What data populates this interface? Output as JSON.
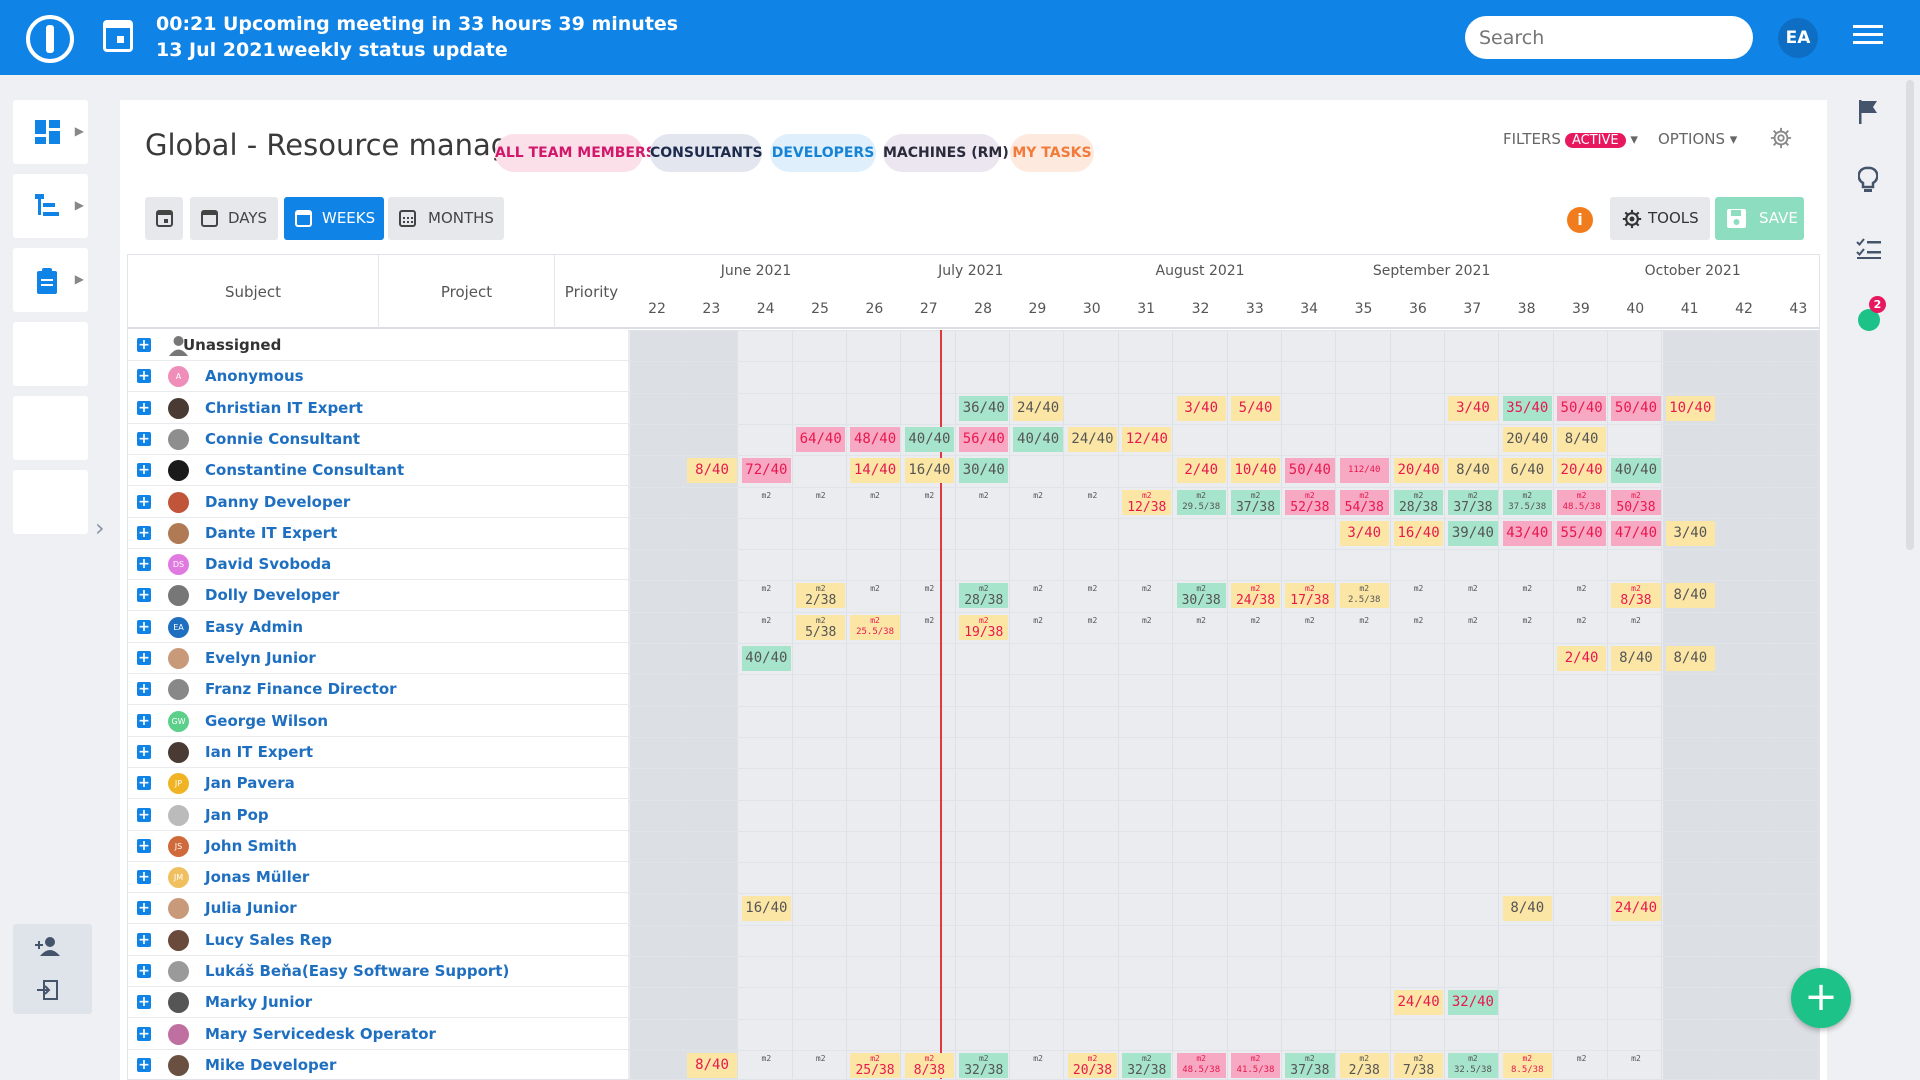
{
  "topbar": {
    "time": "00:21",
    "meeting": "Upcoming meeting in 33 hours 39 minutes",
    "date": "13 Jul 2021",
    "event": "weekly status update",
    "search_placeholder": "Search",
    "avatar": "EA"
  },
  "page": {
    "title": "Global - Resource management"
  },
  "views": [
    {
      "label": "ALL TEAM MEMBERS",
      "bg": "#fbe0ea",
      "fg": "#d1186a"
    },
    {
      "label": "CONSULTANTS",
      "bg": "#e3e6ee",
      "fg": "#1c2a4c"
    },
    {
      "label": "DEVELOPERS",
      "bg": "#dff0fc",
      "fg": "#1783d4"
    },
    {
      "label": "MACHINES (RM)",
      "bg": "#ebe6ef",
      "fg": "#2a2a3a"
    },
    {
      "label": "MY TASKS",
      "bg": "#fde9de",
      "fg": "#f27a3a"
    }
  ],
  "toolbar": {
    "filters": "FILTERS",
    "active": "ACTIVE",
    "options": "OPTIONS",
    "days": "DAYS",
    "weeks": "WEEKS",
    "months": "MONTHS",
    "tools": "TOOLS",
    "save": "SAVE",
    "info": "i"
  },
  "columns": {
    "subject": "Subject",
    "project": "Project",
    "priority": "Priority"
  },
  "months": [
    {
      "label": "June 2021",
      "week": 24
    },
    {
      "label": "July 2021",
      "week": 28
    },
    {
      "label": "August 2021",
      "week": 32
    },
    {
      "label": "September 2021",
      "week": 36
    },
    {
      "label": "October 2021",
      "week": 41
    }
  ],
  "weeks": [
    "22",
    "23",
    "24",
    "25",
    "26",
    "27",
    "28",
    "29",
    "30",
    "31",
    "32",
    "33",
    "34",
    "35",
    "36",
    "37",
    "38",
    "39",
    "40",
    "41",
    "42",
    "43"
  ],
  "current_week": 28,
  "colors": {
    "pink": "#f7a8c2",
    "green": "#a6e4cc",
    "yellow": "#fbe6a6",
    "red_text": "#e8184f",
    "dark_text": "#555555",
    "accent": "#0f83e6",
    "save": "#8dddc0",
    "fab": "#1cc287",
    "badge": "#e8185e"
  },
  "people": [
    {
      "name": "Unassigned",
      "type": "group",
      "cells": []
    },
    {
      "name": "Anonymous",
      "avatar": "A",
      "color": "#ef8fb9",
      "cells": []
    },
    {
      "name": "Christian IT Expert",
      "avatar": "photo",
      "color": "#4a3a34",
      "cells": [
        {
          "w": 28,
          "v": "36/40",
          "bg": "green",
          "red": false
        },
        {
          "w": 29,
          "v": "24/40",
          "bg": "yellow",
          "red": false
        },
        {
          "w": 32,
          "v": "3/40",
          "bg": "yellow",
          "red": true
        },
        {
          "w": 33,
          "v": "5/40",
          "bg": "yellow",
          "red": true
        },
        {
          "w": 37,
          "v": "3/40",
          "bg": "yellow",
          "red": true
        },
        {
          "w": 38,
          "v": "35/40",
          "bg": "green",
          "red": true
        },
        {
          "w": 39,
          "v": "50/40",
          "bg": "pink",
          "red": true
        },
        {
          "w": 40,
          "v": "50/40",
          "bg": "pink",
          "red": true
        },
        {
          "w": 41,
          "v": "10/40",
          "bg": "yellow",
          "red": true
        }
      ]
    },
    {
      "name": "Connie Consultant",
      "avatar": "photo",
      "color": "#8e8e8e",
      "cells": [
        {
          "w": 25,
          "v": "64/40",
          "bg": "pink",
          "red": true
        },
        {
          "w": 26,
          "v": "48/40",
          "bg": "pink",
          "red": true
        },
        {
          "w": 27,
          "v": "40/40",
          "bg": "green",
          "red": false
        },
        {
          "w": 28,
          "v": "56/40",
          "bg": "pink",
          "red": true
        },
        {
          "w": 29,
          "v": "40/40",
          "bg": "green",
          "red": false
        },
        {
          "w": 30,
          "v": "24/40",
          "bg": "yellow",
          "red": false
        },
        {
          "w": 31,
          "v": "12/40",
          "bg": "yellow",
          "red": true
        },
        {
          "w": 38,
          "v": "20/40",
          "bg": "yellow",
          "red": false
        },
        {
          "w": 39,
          "v": "8/40",
          "bg": "yellow",
          "red": false
        }
      ]
    },
    {
      "name": "Constantine Consultant",
      "avatar": "photo",
      "color": "#1a1a1a",
      "cells": [
        {
          "w": 23,
          "v": "8/40",
          "bg": "yellow",
          "red": true
        },
        {
          "w": 24,
          "v": "72/40",
          "bg": "pink",
          "red": true
        },
        {
          "w": 26,
          "v": "14/40",
          "bg": "yellow",
          "red": true
        },
        {
          "w": 27,
          "v": "16/40",
          "bg": "yellow",
          "red": false
        },
        {
          "w": 28,
          "v": "30/40",
          "bg": "green",
          "red": false
        },
        {
          "w": 32,
          "v": "2/40",
          "bg": "yellow",
          "red": true
        },
        {
          "w": 33,
          "v": "10/40",
          "bg": "yellow",
          "red": true
        },
        {
          "w": 34,
          "v": "50/40",
          "bg": "pink",
          "red": true
        },
        {
          "w": 35,
          "v": "112/40",
          "bg": "pink",
          "red": true,
          "small": true
        },
        {
          "w": 36,
          "v": "20/40",
          "bg": "yellow",
          "red": true
        },
        {
          "w": 37,
          "v": "8/40",
          "bg": "yellow",
          "red": false
        },
        {
          "w": 38,
          "v": "6/40",
          "bg": "yellow",
          "red": false
        },
        {
          "w": 39,
          "v": "20/40",
          "bg": "yellow",
          "red": true
        },
        {
          "w": 40,
          "v": "40/40",
          "bg": "green",
          "red": false
        }
      ]
    },
    {
      "name": "Danny Developer",
      "avatar": "photo",
      "color": "#c0553a",
      "cells": [
        {
          "w": 24,
          "s": "m2"
        },
        {
          "w": 25,
          "s": "m2"
        },
        {
          "w": 26,
          "s": "m2"
        },
        {
          "w": 27,
          "s": "m2"
        },
        {
          "w": 28,
          "s": "m2"
        },
        {
          "w": 29,
          "s": "m2"
        },
        {
          "w": 30,
          "s": "m2"
        },
        {
          "w": 31,
          "s": "m2",
          "v": "12/38",
          "bg": "yellow",
          "red": true
        },
        {
          "w": 32,
          "s": "m2",
          "v": "29.5/38",
          "bg": "green",
          "red": false,
          "small": true
        },
        {
          "w": 33,
          "s": "m2",
          "v": "37/38",
          "bg": "green",
          "red": false
        },
        {
          "w": 34,
          "s": "m2",
          "v": "52/38",
          "bg": "pink",
          "red": true
        },
        {
          "w": 35,
          "s": "m2",
          "v": "54/38",
          "bg": "pink",
          "red": true
        },
        {
          "w": 36,
          "s": "m2",
          "v": "28/38",
          "bg": "green",
          "red": false
        },
        {
          "w": 37,
          "s": "m2",
          "v": "37/38",
          "bg": "green",
          "red": false
        },
        {
          "w": 38,
          "s": "m2",
          "v": "37.5/38",
          "bg": "green",
          "red": false,
          "small": true
        },
        {
          "w": 39,
          "s": "m2",
          "v": "48.5/38",
          "bg": "pink",
          "red": true,
          "small": true
        },
        {
          "w": 40,
          "s": "m2",
          "v": "50/38",
          "bg": "pink",
          "red": true
        }
      ]
    },
    {
      "name": "Dante IT Expert",
      "avatar": "photo",
      "color": "#b07a55",
      "cells": [
        {
          "w": 35,
          "v": "3/40",
          "bg": "yellow",
          "red": true
        },
        {
          "w": 36,
          "v": "16/40",
          "bg": "yellow",
          "red": true
        },
        {
          "w": 37,
          "v": "39/40",
          "bg": "green",
          "red": false
        },
        {
          "w": 38,
          "v": "43/40",
          "bg": "pink",
          "red": true
        },
        {
          "w": 39,
          "v": "55/40",
          "bg": "pink",
          "red": true
        },
        {
          "w": 40,
          "v": "47/40",
          "bg": "pink",
          "red": true
        },
        {
          "w": 41,
          "v": "3/40",
          "bg": "yellow",
          "red": false
        }
      ]
    },
    {
      "name": "David Svoboda",
      "avatar": "DS",
      "color": "#e07ae0",
      "cells": []
    },
    {
      "name": "Dolly Developer",
      "avatar": "photo",
      "color": "#777777",
      "cells": [
        {
          "w": 24,
          "s": "m2"
        },
        {
          "w": 25,
          "s": "m2",
          "v": "2/38",
          "bg": "yellow",
          "red": false
        },
        {
          "w": 26,
          "s": "m2"
        },
        {
          "w": 27,
          "s": "m2"
        },
        {
          "w": 28,
          "s": "m2",
          "v": "28/38",
          "bg": "green",
          "red": false
        },
        {
          "w": 29,
          "s": "m2"
        },
        {
          "w": 30,
          "s": "m2"
        },
        {
          "w": 31,
          "s": "m2"
        },
        {
          "w": 32,
          "s": "m2",
          "v": "30/38",
          "bg": "green",
          "red": false
        },
        {
          "w": 33,
          "s": "m2",
          "v": "24/38",
          "bg": "yellow",
          "red": true
        },
        {
          "w": 34,
          "s": "m2",
          "v": "17/38",
          "bg": "yellow",
          "red": true
        },
        {
          "w": 35,
          "s": "m2",
          "v": "2.5/38",
          "bg": "yellow",
          "red": false,
          "small": true
        },
        {
          "w": 36,
          "s": "m2"
        },
        {
          "w": 37,
          "s": "m2"
        },
        {
          "w": 38,
          "s": "m2"
        },
        {
          "w": 39,
          "s": "m2"
        },
        {
          "w": 40,
          "s": "m2",
          "v": "8/38",
          "bg": "yellow",
          "red": true
        },
        {
          "w": 41,
          "v": "8/40",
          "bg": "yellow",
          "red": false
        }
      ]
    },
    {
      "name": "Easy Admin",
      "avatar": "EA",
      "color": "#1f6fc1",
      "cells": [
        {
          "w": 24,
          "s": "m2"
        },
        {
          "w": 25,
          "s": "m2",
          "v": "5/38",
          "bg": "yellow",
          "red": false
        },
        {
          "w": 26,
          "s": "m2",
          "v": "25.5/38",
          "bg": "yellow",
          "red": true,
          "small": true
        },
        {
          "w": 27,
          "s": "m2"
        },
        {
          "w": 28,
          "s": "m2",
          "v": "19/38",
          "bg": "yellow",
          "red": true
        },
        {
          "w": 29,
          "s": "m2"
        },
        {
          "w": 30,
          "s": "m2"
        },
        {
          "w": 31,
          "s": "m2"
        },
        {
          "w": 32,
          "s": "m2"
        },
        {
          "w": 33,
          "s": "m2"
        },
        {
          "w": 34,
          "s": "m2"
        },
        {
          "w": 35,
          "s": "m2"
        },
        {
          "w": 36,
          "s": "m2"
        },
        {
          "w": 37,
          "s": "m2"
        },
        {
          "w": 38,
          "s": "m2"
        },
        {
          "w": 39,
          "s": "m2"
        },
        {
          "w": 40,
          "s": "m2"
        }
      ]
    },
    {
      "name": "Evelyn Junior",
      "avatar": "photo",
      "color": "#c99a7a",
      "cells": [
        {
          "w": 24,
          "v": "40/40",
          "bg": "green",
          "red": false
        },
        {
          "w": 39,
          "v": "2/40",
          "bg": "yellow",
          "red": true
        },
        {
          "w": 40,
          "v": "8/40",
          "bg": "yellow",
          "red": false
        },
        {
          "w": 41,
          "v": "8/40",
          "bg": "yellow",
          "red": false
        }
      ]
    },
    {
      "name": "Franz Finance Director",
      "avatar": "photo",
      "color": "#888888",
      "cells": []
    },
    {
      "name": "George Wilson",
      "avatar": "GW",
      "color": "#5ccf8a",
      "cells": []
    },
    {
      "name": "Ian IT Expert",
      "avatar": "photo",
      "color": "#4a3a34",
      "cells": []
    },
    {
      "name": "Jan Pavera",
      "avatar": "JP",
      "color": "#f0b324",
      "cells": []
    },
    {
      "name": "Jan Pop",
      "avatar": "photo",
      "color": "#bbbbbb",
      "cells": []
    },
    {
      "name": "John Smith",
      "avatar": "JS",
      "color": "#d06a3a",
      "cells": []
    },
    {
      "name": "Jonas Müller",
      "avatar": "JM",
      "color": "#f0c060",
      "cells": []
    },
    {
      "name": "Julia Junior",
      "avatar": "photo",
      "color": "#c99a7a",
      "cells": [
        {
          "w": 24,
          "v": "16/40",
          "bg": "yellow",
          "red": false
        },
        {
          "w": 38,
          "v": "8/40",
          "bg": "yellow",
          "red": false
        },
        {
          "w": 40,
          "v": "24/40",
          "bg": "yellow",
          "red": true
        }
      ]
    },
    {
      "name": "Lucy Sales Rep",
      "avatar": "photo",
      "color": "#6a4a3a",
      "cells": []
    },
    {
      "name": "Lukáš Beňa(Easy Software Support)",
      "avatar": "photo",
      "color": "#9a9a9a",
      "cells": []
    },
    {
      "name": "Marky Junior",
      "avatar": "photo",
      "color": "#555555",
      "cells": [
        {
          "w": 36,
          "v": "24/40",
          "bg": "yellow",
          "red": true
        },
        {
          "w": 37,
          "v": "32/40",
          "bg": "green",
          "red": true
        }
      ]
    },
    {
      "name": "Mary Servicedesk Operator",
      "avatar": "photo",
      "color": "#c070a0",
      "cells": []
    },
    {
      "name": "Mike Developer",
      "avatar": "photo",
      "color": "#6a5040",
      "cells": [
        {
          "w": 23,
          "v": "8/40",
          "bg": "yellow",
          "red": true
        },
        {
          "w": 24,
          "s": "m2"
        },
        {
          "w": 25,
          "s": "m2"
        },
        {
          "w": 26,
          "s": "m2",
          "v": "25/38",
          "bg": "yellow",
          "red": true
        },
        {
          "w": 27,
          "s": "m2",
          "v": "8/38",
          "bg": "yellow",
          "red": true
        },
        {
          "w": 28,
          "s": "m2",
          "v": "32/38",
          "bg": "green",
          "red": false
        },
        {
          "w": 29,
          "s": "m2"
        },
        {
          "w": 30,
          "s": "m2",
          "v": "20/38",
          "bg": "yellow",
          "red": true
        },
        {
          "w": 31,
          "s": "m2",
          "v": "32/38",
          "bg": "green",
          "red": false
        },
        {
          "w": 32,
          "s": "m2",
          "v": "48.5/38",
          "bg": "pink",
          "red": true,
          "small": true
        },
        {
          "w": 33,
          "s": "m2",
          "v": "41.5/38",
          "bg": "pink",
          "red": true,
          "small": true
        },
        {
          "w": 34,
          "s": "m2",
          "v": "37/38",
          "bg": "green",
          "red": false
        },
        {
          "w": 35,
          "s": "m2",
          "v": "2/38",
          "bg": "yellow",
          "red": false
        },
        {
          "w": 36,
          "s": "m2",
          "v": "7/38",
          "bg": "yellow",
          "red": false
        },
        {
          "w": 37,
          "s": "m2",
          "v": "32.5/38",
          "bg": "green",
          "red": false,
          "small": true
        },
        {
          "w": 38,
          "s": "m2",
          "v": "8.5/38",
          "bg": "yellow",
          "red": true,
          "small": true
        },
        {
          "w": 39,
          "s": "m2"
        },
        {
          "w": 40,
          "s": "m2"
        }
      ]
    }
  ],
  "sidebar_right": {
    "notification_count": "2"
  },
  "fab": "+"
}
